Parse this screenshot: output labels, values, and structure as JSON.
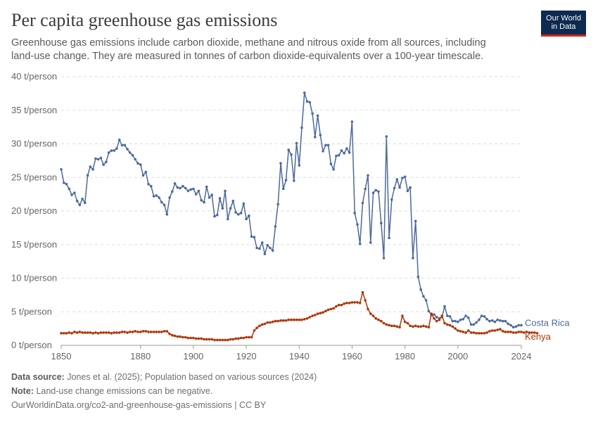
{
  "header": {
    "title": "Per capita greenhouse gas emissions",
    "subtitle": "Greenhouse gas emissions include carbon dioxide, methane and nitrous oxide from all sources, including land-use change. They are measured in tonnes of carbon dioxide-equivalents over a 100-year timescale.",
    "logo_line1": "Our World",
    "logo_line2": "in Data"
  },
  "footer": {
    "source_label": "Data source:",
    "source_text": "Jones et al. (2025); Population based on various sources (2024)",
    "note_label": "Note:",
    "note_text": "Land-use change emissions can be negative.",
    "url_text": "OurWorldinData.org/co2-and-greenhouse-gas-emissions | CC BY"
  },
  "colors": {
    "costa_rica": "#4c6a9c",
    "kenya": "#b13507",
    "grid": "#dddddd",
    "logo_bg": "#0d2a4f",
    "logo_accent": "#ce261e"
  },
  "chart_data": {
    "type": "line",
    "xlim": [
      1850,
      2024
    ],
    "ylim": [
      0,
      40
    ],
    "x_ticks": [
      1850,
      1880,
      1900,
      1920,
      1940,
      1960,
      1980,
      2000,
      2024
    ],
    "y_ticks": [
      {
        "value": 0,
        "label": "0 t/person"
      },
      {
        "value": 5,
        "label": "5 t/person"
      },
      {
        "value": 10,
        "label": "10 t/person"
      },
      {
        "value": 15,
        "label": "15 t/person"
      },
      {
        "value": 20,
        "label": "20 t/person"
      },
      {
        "value": 25,
        "label": "25 t/person"
      },
      {
        "value": 30,
        "label": "30 t/person"
      },
      {
        "value": 35,
        "label": "35 t/person"
      },
      {
        "value": 40,
        "label": "40 t/person"
      }
    ],
    "grid": "horizontal dashed",
    "series": [
      {
        "name": "Costa Rica",
        "x_start": 1850,
        "values": [
          26.2,
          24.2,
          24.0,
          23.3,
          22.4,
          22.7,
          21.5,
          20.9,
          21.8,
          21.2,
          25.3,
          26.6,
          26.2,
          27.8,
          27.7,
          27.9,
          26.9,
          27.3,
          28.7,
          29.0,
          29.0,
          29.3,
          30.6,
          29.8,
          29.8,
          29.2,
          28.7,
          28.3,
          27.7,
          27.1,
          26.9,
          25.3,
          25.8,
          24.0,
          23.7,
          22.2,
          22.3,
          22.0,
          21.3,
          20.9,
          19.5,
          22.0,
          22.9,
          24.1,
          23.5,
          23.4,
          23.7,
          23.4,
          23.0,
          23.2,
          23.3,
          22.5,
          23.0,
          21.6,
          21.3,
          23.6,
          22.0,
          22.4,
          19.2,
          19.4,
          21.9,
          20.4,
          23.0,
          18.8,
          20.4,
          21.5,
          19.8,
          19.5,
          19.7,
          21.1,
          18.8,
          19.3,
          16.2,
          16.1,
          14.5,
          14.4,
          15.3,
          13.6,
          14.9,
          14.5,
          14.1,
          17.7,
          21.0,
          27.1,
          23.3,
          24.6,
          29.1,
          28.4,
          24.5,
          30.1,
          26.8,
          32.4,
          37.6,
          36.3,
          36.2,
          34.5,
          31.0,
          34.2,
          31.3,
          28.9,
          29.8,
          29.8,
          27.0,
          26.2,
          28.2,
          28.3,
          29.0,
          28.6,
          29.3,
          28.7,
          33.3,
          19.7,
          18.0,
          15.1,
          21.2,
          23.3,
          25.3,
          15.3,
          22.7,
          23.1,
          22.9,
          18.2,
          13.0,
          31.1,
          16.0,
          21.7,
          23.4,
          24.7,
          23.5,
          24.9,
          25.1,
          23.0,
          23.5,
          13.0,
          18.5,
          10.2,
          8.3,
          7.3,
          6.7,
          5.1,
          4.5,
          4.6,
          4.2,
          4.0,
          4.2,
          5.8,
          4.4,
          4.3,
          3.6,
          3.6,
          3.5,
          3.8,
          3.9,
          4.4,
          4.1,
          3.1,
          3.1,
          3.4,
          3.8,
          4.4,
          4.3,
          3.9,
          3.6,
          3.7,
          3.5,
          3.8,
          3.7,
          3.6,
          3.6,
          3.2,
          3.0,
          2.7,
          2.8,
          3.0,
          3.0
        ]
      },
      {
        "name": "Kenya",
        "x_start": 1850,
        "values": [
          1.8,
          1.8,
          1.8,
          1.9,
          1.8,
          2.0,
          1.9,
          2.0,
          1.9,
          1.9,
          1.9,
          1.9,
          1.8,
          1.9,
          1.8,
          1.9,
          1.9,
          1.9,
          1.9,
          1.8,
          1.9,
          1.9,
          1.9,
          2.0,
          2.0,
          1.9,
          2.0,
          2.0,
          2.1,
          2.0,
          2.0,
          2.1,
          2.1,
          2.0,
          2.0,
          2.0,
          2.0,
          2.0,
          2.0,
          2.1,
          2.1,
          1.7,
          1.5,
          1.4,
          1.3,
          1.3,
          1.2,
          1.2,
          1.1,
          1.1,
          1.1,
          1.0,
          1.0,
          1.0,
          0.9,
          0.9,
          0.9,
          0.9,
          0.8,
          0.8,
          0.8,
          0.8,
          0.8,
          0.8,
          0.9,
          0.9,
          1.0,
          1.0,
          1.1,
          1.1,
          1.2,
          1.2,
          1.2,
          2.2,
          2.6,
          2.9,
          3.1,
          3.2,
          3.4,
          3.4,
          3.5,
          3.6,
          3.6,
          3.7,
          3.7,
          3.7,
          3.8,
          3.8,
          3.8,
          3.8,
          3.8,
          3.8,
          3.9,
          4.0,
          4.2,
          4.4,
          4.5,
          4.7,
          4.8,
          4.9,
          5.1,
          5.3,
          5.4,
          5.5,
          5.8,
          6.0,
          6.0,
          6.2,
          6.3,
          6.3,
          6.4,
          6.4,
          6.4,
          6.3,
          7.9,
          6.7,
          5.4,
          4.7,
          4.4,
          4.0,
          3.8,
          3.6,
          3.3,
          3.1,
          3.0,
          2.9,
          2.9,
          2.8,
          2.7,
          4.4,
          3.5,
          3.3,
          2.9,
          2.8,
          2.9,
          2.8,
          2.8,
          2.9,
          2.8,
          2.7,
          4.7,
          4.0,
          3.6,
          3.8,
          4.4,
          3.3,
          3.1,
          3.0,
          2.8,
          2.5,
          2.2,
          2.1,
          2.0,
          1.9,
          2.2,
          1.9,
          1.9,
          1.8,
          1.8,
          1.8,
          1.8,
          1.9,
          2.1,
          2.2,
          2.2,
          2.3,
          2.4,
          2.1,
          2.0,
          2.0,
          2.0,
          1.9,
          1.9,
          2.0,
          2.0,
          1.9,
          2.0,
          1.9,
          1.9,
          1.9,
          1.8
        ]
      }
    ]
  }
}
